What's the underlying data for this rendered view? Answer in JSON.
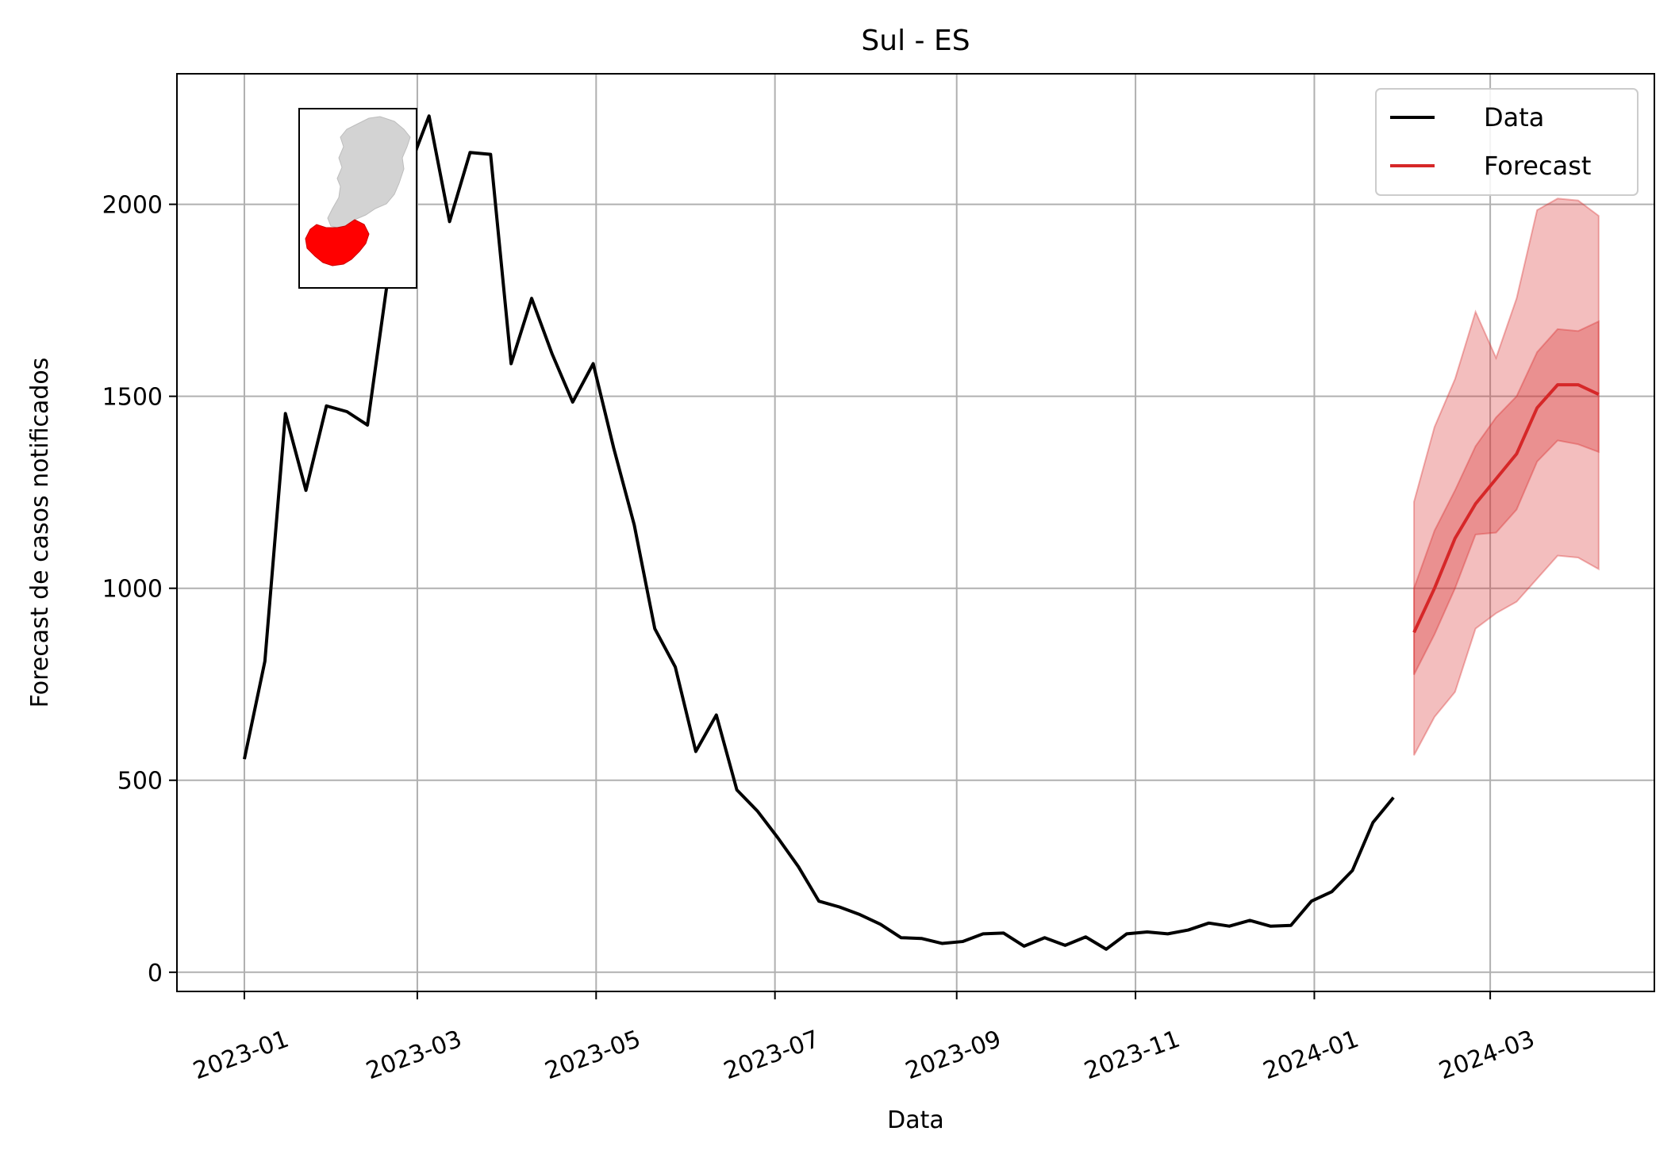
{
  "chart_data": {
    "type": "line",
    "title": "Sul - ES",
    "xlabel": "Data",
    "ylabel": "Forecast de casos notificados",
    "ylim": [
      -50,
      2340
    ],
    "xlim": [
      "2022-12-09",
      "2024-04-26"
    ],
    "grid": true,
    "legend_position": "top-right",
    "x_ticks": [
      "2023-01",
      "2023-03",
      "2023-05",
      "2023-07",
      "2023-09",
      "2023-11",
      "2024-01",
      "2024-03"
    ],
    "y_ticks": [
      0,
      500,
      1000,
      1500,
      2000
    ],
    "series": [
      {
        "name": "Data",
        "color": "#000000",
        "x": [
          "2023-01-01",
          "2023-01-08",
          "2023-01-15",
          "2023-01-22",
          "2023-01-29",
          "2023-02-05",
          "2023-02-12",
          "2023-02-19",
          "2023-02-26",
          "2023-03-05",
          "2023-03-12",
          "2023-03-19",
          "2023-03-26",
          "2023-04-02",
          "2023-04-09",
          "2023-04-16",
          "2023-04-23",
          "2023-04-30",
          "2023-05-07",
          "2023-05-14",
          "2023-05-21",
          "2023-05-28",
          "2023-06-04",
          "2023-06-11",
          "2023-06-18",
          "2023-06-25",
          "2023-07-02",
          "2023-07-09",
          "2023-07-16",
          "2023-07-23",
          "2023-07-30",
          "2023-08-06",
          "2023-08-13",
          "2023-08-20",
          "2023-08-27",
          "2023-09-03",
          "2023-09-10",
          "2023-09-17",
          "2023-09-24",
          "2023-10-01",
          "2023-10-08",
          "2023-10-15",
          "2023-10-22",
          "2023-10-29",
          "2023-11-05",
          "2023-11-12",
          "2023-11-19",
          "2023-11-26",
          "2023-12-03",
          "2023-12-10",
          "2023-12-17",
          "2023-12-24",
          "2023-12-31",
          "2024-01-07",
          "2024-01-14",
          "2024-01-21",
          "2024-01-28"
        ],
        "values": [
          555,
          810,
          1455,
          1255,
          1475,
          1460,
          1425,
          1810,
          2090,
          2230,
          1955,
          2135,
          2130,
          1585,
          1755,
          1610,
          1485,
          1585,
          1365,
          1165,
          895,
          795,
          575,
          670,
          475,
          420,
          350,
          275,
          185,
          170,
          150,
          125,
          90,
          88,
          75,
          80,
          100,
          102,
          68,
          90,
          70,
          92,
          60,
          100,
          105,
          100,
          110,
          128,
          120,
          135,
          120,
          122,
          185,
          210,
          265,
          390,
          455
        ]
      },
      {
        "name": "Forecast",
        "color": "#d62728",
        "x": [
          "2024-02-04",
          "2024-02-11",
          "2024-02-18",
          "2024-02-25",
          "2024-03-03",
          "2024-03-10",
          "2024-03-17",
          "2024-03-24",
          "2024-03-31",
          "2024-04-07"
        ],
        "values": [
          885,
          1000,
          1130,
          1220,
          1285,
          1350,
          1470,
          1530,
          1530,
          1505
        ],
        "band_50": {
          "lower": [
            775,
            880,
            1000,
            1140,
            1145,
            1205,
            1330,
            1385,
            1375,
            1355
          ],
          "upper": [
            1000,
            1150,
            1255,
            1370,
            1445,
            1500,
            1615,
            1675,
            1670,
            1695
          ]
        },
        "band_90": {
          "lower": [
            565,
            665,
            730,
            895,
            935,
            965,
            1025,
            1085,
            1080,
            1050
          ],
          "upper": [
            1225,
            1420,
            1545,
            1720,
            1600,
            1755,
            1985,
            2015,
            2010,
            1970
          ]
        }
      }
    ],
    "inset_map": {
      "region_color": "#ff0000",
      "state_color": "#d3d3d3"
    }
  }
}
